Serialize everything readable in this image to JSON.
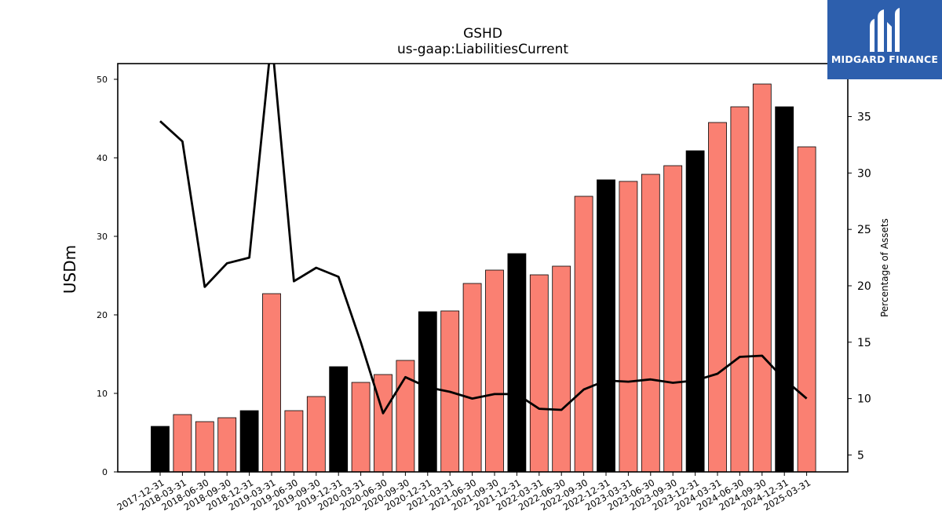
{
  "header": {
    "ticker": "GSHD",
    "metric": "us-gaap:LiabilitiesCurrent"
  },
  "logo": {
    "text": "MIDGARD FINANCE",
    "color": "#2d5fad"
  },
  "chart_data": {
    "type": "bar",
    "title": "GSHD",
    "subtitle": "us-gaap:LiabilitiesCurrent",
    "ylabel": "USDm",
    "ylabel_right": "Percentage of Assets",
    "ylim": [
      0,
      52
    ],
    "ylim_right": [
      3.5,
      39.7
    ],
    "yticks": [
      0,
      10,
      20,
      30,
      40,
      50
    ],
    "yticks_right": [
      5,
      10,
      15,
      20,
      25,
      30,
      35
    ],
    "categories": [
      "2017-12-31",
      "2018-03-31",
      "2018-06-30",
      "2018-09-30",
      "2018-12-31",
      "2019-03-31",
      "2019-06-30",
      "2019-09-30",
      "2019-12-31",
      "2020-03-31",
      "2020-06-30",
      "2020-09-30",
      "2020-12-31",
      "2021-03-31",
      "2021-06-30",
      "2021-09-30",
      "2021-12-31",
      "2022-03-31",
      "2022-06-30",
      "2022-09-30",
      "2022-12-31",
      "2023-03-31",
      "2023-06-30",
      "2023-09-30",
      "2023-12-31",
      "2024-03-31",
      "2024-06-30",
      "2024-09-30",
      "2024-12-31",
      "2025-03-31"
    ],
    "series": [
      {
        "type": "bar",
        "axis": "left",
        "values": [
          5.8,
          7.3,
          6.4,
          6.9,
          7.8,
          22.7,
          7.8,
          9.6,
          13.4,
          11.4,
          12.4,
          14.2,
          20.4,
          20.5,
          24.0,
          25.7,
          27.8,
          25.1,
          26.2,
          35.1,
          37.2,
          37.0,
          37.9,
          39.0,
          40.9,
          44.5,
          46.5,
          49.4,
          46.5,
          41.4
        ]
      },
      {
        "type": "line",
        "axis": "right",
        "values": [
          34.6,
          32.8,
          19.9,
          22.0,
          22.5,
          42.0,
          20.4,
          21.6,
          20.8,
          15.0,
          8.7,
          11.9,
          11.0,
          10.6,
          10.0,
          10.4,
          10.4,
          9.1,
          9.0,
          10.8,
          11.6,
          11.5,
          11.7,
          11.4,
          11.6,
          12.2,
          13.7,
          13.8,
          11.7,
          10.0
        ]
      }
    ],
    "bar_colors": {
      "year_end": "#000000",
      "quarter": "#fa8072"
    },
    "line_color": "#000000"
  }
}
